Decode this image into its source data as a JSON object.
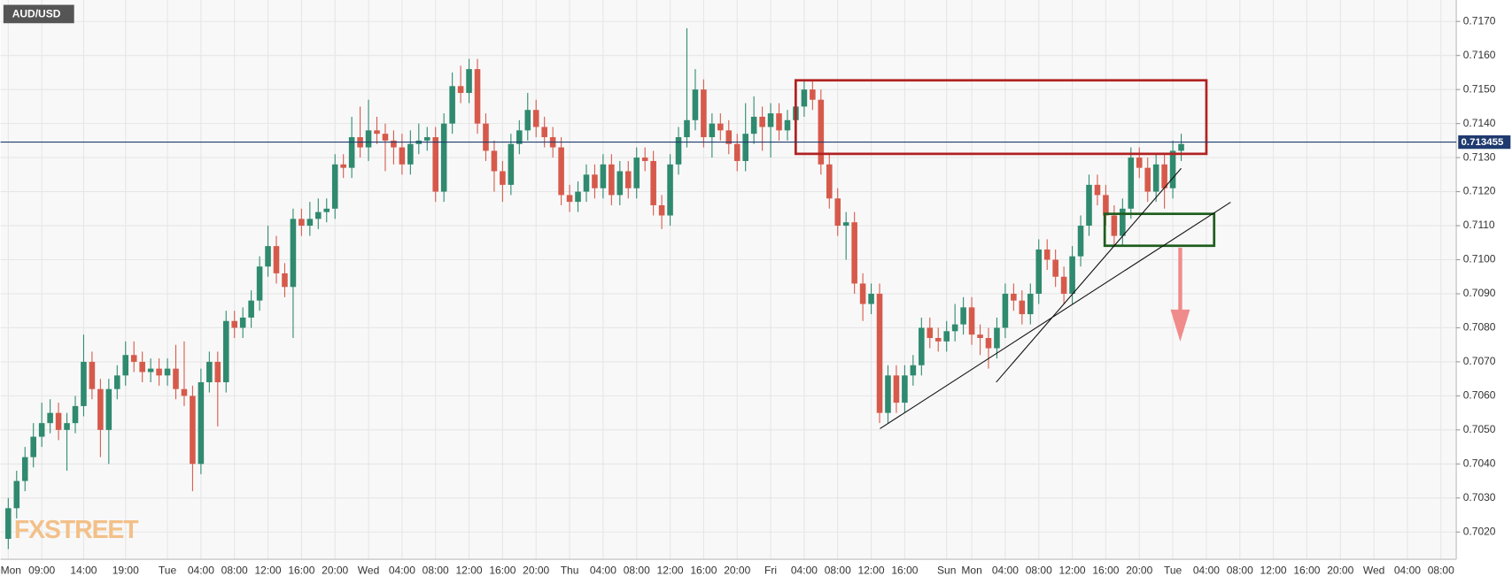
{
  "chart_data": {
    "type": "candlestick",
    "title": "AUD/USD",
    "watermark": "FXSTREET",
    "last_price": 0.713455,
    "up_color": "#2f8a6f",
    "down_color": "#d65a4b",
    "grid": true,
    "ylim": [
      0.7012,
      0.71763
    ],
    "yticks": [
      {
        "value": 0.702,
        "label": "0.7020"
      },
      {
        "value": 0.703,
        "label": "0.7030"
      },
      {
        "value": 0.704,
        "label": "0.7040"
      },
      {
        "value": 0.705,
        "label": "0.7050"
      },
      {
        "value": 0.706,
        "label": "0.7060"
      },
      {
        "value": 0.707,
        "label": "0.7070"
      },
      {
        "value": 0.708,
        "label": "0.7080"
      },
      {
        "value": 0.709,
        "label": "0.7090"
      },
      {
        "value": 0.71,
        "label": "0.7100"
      },
      {
        "value": 0.711,
        "label": "0.7110"
      },
      {
        "value": 0.712,
        "label": "0.7120"
      },
      {
        "value": 0.713,
        "label": "0.7130"
      },
      {
        "value": 0.714,
        "label": "0.7140"
      },
      {
        "value": 0.715,
        "label": "0.7150"
      },
      {
        "value": 0.716,
        "label": "0.7160"
      },
      {
        "value": 0.717,
        "label": "0.7170"
      }
    ],
    "categories": [
      "Mon",
      null,
      null,
      null,
      "09:00",
      null,
      null,
      null,
      null,
      "14:00",
      null,
      null,
      null,
      null,
      "19:00",
      null,
      null,
      null,
      null,
      "Tue",
      null,
      null,
      null,
      "04:00",
      null,
      null,
      null,
      "08:00",
      null,
      null,
      null,
      "12:00",
      null,
      null,
      null,
      "16:00",
      null,
      null,
      null,
      "20:00",
      null,
      null,
      null,
      "Wed",
      null,
      null,
      null,
      "04:00",
      null,
      null,
      null,
      "08:00",
      null,
      null,
      null,
      "12:00",
      null,
      null,
      null,
      "16:00",
      null,
      null,
      null,
      "20:00",
      null,
      null,
      null,
      "Thu",
      null,
      null,
      null,
      "04:00",
      null,
      null,
      null,
      "08:00",
      null,
      null,
      null,
      "12:00",
      null,
      null,
      null,
      "16:00",
      null,
      null,
      null,
      "20:00",
      null,
      null,
      null,
      "Fri",
      null,
      null,
      null,
      "04:00",
      null,
      null,
      null,
      "08:00",
      null,
      null,
      null,
      "12:00",
      null,
      null,
      null,
      "16:00",
      null,
      null,
      null,
      null,
      "Sun",
      null,
      null,
      "Mon",
      null,
      null,
      null,
      "04:00",
      null,
      null,
      null,
      "08:00",
      null,
      null,
      null,
      "12:00",
      null,
      null,
      null,
      "16:00",
      null,
      null,
      null,
      "20:00",
      null,
      null,
      null,
      "Tue",
      null,
      null,
      null,
      "04:00",
      null,
      null,
      null,
      "08:00",
      null,
      null,
      null,
      "12:00",
      null,
      null,
      null,
      "16:00",
      null,
      null,
      null,
      "20:00",
      null,
      null,
      null,
      "Wed",
      null,
      null,
      null,
      "04:00",
      null,
      null,
      null,
      "08:00"
    ],
    "open": [
      0.7018,
      0.7027,
      0.7035,
      0.7042,
      0.7048,
      0.7052,
      0.7055,
      0.705,
      0.7052,
      0.7057,
      0.707,
      0.7062,
      0.705,
      0.7062,
      0.7066,
      0.7072,
      0.707,
      0.7067,
      0.7068,
      0.7066,
      0.7068,
      0.7062,
      0.706,
      0.704,
      0.7064,
      0.707,
      0.7064,
      0.7082,
      0.708,
      0.7083,
      0.7088,
      0.7098,
      0.7104,
      0.7096,
      0.7092,
      0.7112,
      0.711,
      0.7112,
      0.7114,
      0.7115,
      0.7128,
      0.7127,
      0.7136,
      0.7133,
      0.7138,
      0.7137,
      0.7135,
      0.7133,
      0.7128,
      0.7134,
      0.7135,
      0.7136,
      0.712,
      0.714,
      0.7151,
      0.7149,
      0.7156,
      0.714,
      0.7132,
      0.7126,
      0.7122,
      0.7134,
      0.7138,
      0.7144,
      0.7139,
      0.7136,
      0.7133,
      0.7119,
      0.7117,
      0.712,
      0.7125,
      0.7121,
      0.7128,
      0.7119,
      0.7126,
      0.7121,
      0.713,
      0.7129,
      0.7116,
      0.7113,
      0.7128,
      0.7136,
      0.7141,
      0.715,
      0.7136,
      0.714,
      0.7138,
      0.7134,
      0.7129,
      0.7137,
      0.7142,
      0.7139,
      0.7143,
      0.7138,
      0.7141,
      0.7145,
      0.715,
      0.7147,
      0.7128,
      0.7118,
      0.711,
      0.7111,
      0.7093,
      0.7087,
      0.709,
      0.7055,
      0.7066,
      0.7058,
      0.7066,
      0.7069,
      0.708,
      0.7077,
      0.7076,
      0.7079,
      0.7081,
      0.7086,
      0.7078,
      0.7077,
      0.7074,
      0.708,
      0.709,
      0.7088,
      0.7084,
      0.709,
      0.7103,
      0.71,
      0.7095,
      0.709,
      0.7101,
      0.711,
      0.7122,
      0.7119,
      0.7113,
      0.7107,
      0.7115,
      0.713,
      0.7127,
      0.712,
      0.7128,
      0.7121,
      0.7132,
      null,
      null,
      null,
      null,
      null,
      null,
      null,
      null,
      null,
      null,
      null,
      null,
      null,
      null,
      null,
      null,
      null,
      null,
      null,
      null,
      null,
      null,
      null,
      null,
      null,
      null,
      null,
      null,
      null,
      null,
      null
    ],
    "high": [
      0.703,
      0.7038,
      0.7045,
      0.7052,
      0.7058,
      0.7059,
      0.7058,
      0.7055,
      0.706,
      0.7078,
      0.7073,
      0.7065,
      0.7065,
      0.7069,
      0.7076,
      0.7076,
      0.7073,
      0.7071,
      0.7071,
      0.7071,
      0.7075,
      0.7076,
      0.7063,
      0.7068,
      0.7073,
      0.7073,
      0.7085,
      0.7085,
      0.7086,
      0.7091,
      0.7101,
      0.711,
      0.7107,
      0.7099,
      0.7115,
      0.7115,
      0.7117,
      0.7118,
      0.7118,
      0.7131,
      0.7131,
      0.7142,
      0.7145,
      0.7147,
      0.7142,
      0.714,
      0.7138,
      0.7137,
      0.7138,
      0.714,
      0.7139,
      0.7139,
      0.7143,
      0.7155,
      0.7157,
      0.7159,
      0.7159,
      0.7143,
      0.7135,
      0.7129,
      0.7137,
      0.7141,
      0.7149,
      0.7147,
      0.7142,
      0.7139,
      0.7136,
      0.7122,
      0.7123,
      0.7128,
      0.7128,
      0.7131,
      0.7131,
      0.7129,
      0.7129,
      0.7133,
      0.7133,
      0.7132,
      0.7119,
      0.7131,
      0.7139,
      0.7168,
      0.7156,
      0.7153,
      0.7143,
      0.7143,
      0.7141,
      0.7137,
      0.7146,
      0.7148,
      0.7145,
      0.7146,
      0.7146,
      0.7144,
      0.7148,
      0.7153,
      0.7153,
      0.715,
      0.7131,
      0.7121,
      0.7114,
      0.7114,
      0.7096,
      0.7093,
      0.7093,
      0.7069,
      0.7069,
      0.7069,
      0.7072,
      0.7083,
      0.7083,
      0.708,
      0.7082,
      0.7087,
      0.7089,
      0.7089,
      0.7081,
      0.708,
      0.7083,
      0.7093,
      0.7093,
      0.7091,
      0.7093,
      0.7106,
      0.7106,
      0.7103,
      0.7098,
      0.7104,
      0.7113,
      0.7125,
      0.7125,
      0.7122,
      0.7116,
      0.7118,
      0.7133,
      0.7133,
      0.713,
      0.7131,
      0.7131,
      0.7135,
      0.7137,
      null,
      null,
      null,
      null,
      null,
      null,
      null,
      null,
      null,
      null,
      null,
      null,
      null,
      null,
      null,
      null,
      null,
      null,
      null,
      null,
      null,
      null,
      null,
      null,
      null,
      null,
      null,
      null,
      null,
      null,
      null
    ],
    "low": [
      0.7015,
      0.7024,
      0.7032,
      0.7039,
      0.7045,
      0.7049,
      0.7047,
      0.7038,
      0.7049,
      0.7054,
      0.7059,
      0.7042,
      0.704,
      0.7059,
      0.7063,
      0.7067,
      0.7064,
      0.7064,
      0.7063,
      0.7063,
      0.7059,
      0.7057,
      0.7032,
      0.7037,
      0.7061,
      0.7051,
      0.7061,
      0.7077,
      0.7077,
      0.708,
      0.7085,
      0.7095,
      0.7093,
      0.7089,
      0.7077,
      0.7107,
      0.7107,
      0.7109,
      0.7111,
      0.7112,
      0.7124,
      0.7124,
      0.713,
      0.7129,
      0.7134,
      0.7126,
      0.7128,
      0.7125,
      0.7125,
      0.7131,
      0.7132,
      0.7117,
      0.7117,
      0.7137,
      0.7146,
      0.7146,
      0.7137,
      0.7129,
      0.712,
      0.7117,
      0.7119,
      0.7131,
      0.7135,
      0.7136,
      0.7133,
      0.713,
      0.7116,
      0.7114,
      0.7114,
      0.7117,
      0.7118,
      0.7118,
      0.7116,
      0.7116,
      0.7118,
      0.7118,
      0.7126,
      0.7113,
      0.7109,
      0.711,
      0.7125,
      0.7133,
      0.7138,
      0.7133,
      0.713,
      0.7135,
      0.7131,
      0.7126,
      0.7126,
      0.7134,
      0.7132,
      0.713,
      0.7135,
      0.7135,
      0.7138,
      0.7142,
      0.7144,
      0.7125,
      0.7115,
      0.7107,
      0.71,
      0.709,
      0.7082,
      0.7084,
      0.7052,
      0.7052,
      0.7055,
      0.7055,
      0.7063,
      0.7066,
      0.7074,
      0.7073,
      0.7073,
      0.7076,
      0.7078,
      0.7075,
      0.7072,
      0.7068,
      0.7071,
      0.7077,
      0.7085,
      0.7081,
      0.7081,
      0.7087,
      0.7097,
      0.7092,
      0.7087,
      0.7087,
      0.7098,
      0.7107,
      0.7116,
      0.711,
      0.7104,
      0.7104,
      0.7112,
      0.7124,
      0.7117,
      0.7117,
      0.7115,
      0.7118,
      0.7129,
      null,
      null,
      null,
      null,
      null,
      null,
      null,
      null,
      null,
      null,
      null,
      null,
      null,
      null,
      null,
      null,
      null,
      null,
      null,
      null,
      null,
      null,
      null,
      null,
      null,
      null,
      null,
      null,
      null,
      null,
      null
    ],
    "close": [
      0.7027,
      0.7035,
      0.7042,
      0.7048,
      0.7052,
      0.7055,
      0.705,
      0.7052,
      0.7057,
      0.707,
      0.7062,
      0.705,
      0.7062,
      0.7066,
      0.7072,
      0.707,
      0.7067,
      0.7068,
      0.7066,
      0.7068,
      0.7062,
      0.706,
      0.704,
      0.7064,
      0.707,
      0.7064,
      0.7082,
      0.708,
      0.7083,
      0.7088,
      0.7098,
      0.7104,
      0.7096,
      0.7092,
      0.7112,
      0.711,
      0.7112,
      0.7114,
      0.7115,
      0.7128,
      0.7127,
      0.7136,
      0.7133,
      0.7138,
      0.7137,
      0.7135,
      0.7133,
      0.7128,
      0.7134,
      0.7135,
      0.7136,
      0.712,
      0.714,
      0.7151,
      0.7149,
      0.7156,
      0.714,
      0.7132,
      0.7126,
      0.7122,
      0.7134,
      0.7138,
      0.7144,
      0.7139,
      0.7136,
      0.7133,
      0.7119,
      0.7117,
      0.712,
      0.7125,
      0.7121,
      0.7128,
      0.7119,
      0.7126,
      0.7121,
      0.713,
      0.7129,
      0.7116,
      0.7113,
      0.7128,
      0.7136,
      0.7141,
      0.715,
      0.7136,
      0.714,
      0.7138,
      0.7134,
      0.7129,
      0.7137,
      0.7142,
      0.7139,
      0.7143,
      0.7138,
      0.7141,
      0.7145,
      0.715,
      0.7147,
      0.7128,
      0.7118,
      0.711,
      0.7111,
      0.7093,
      0.7087,
      0.709,
      0.7055,
      0.7066,
      0.7058,
      0.7066,
      0.7069,
      0.708,
      0.7077,
      0.7076,
      0.7079,
      0.7081,
      0.7086,
      0.7078,
      0.7077,
      0.7074,
      0.708,
      0.709,
      0.7088,
      0.7084,
      0.709,
      0.7103,
      0.71,
      0.7095,
      0.709,
      0.7101,
      0.711,
      0.7122,
      0.7119,
      0.7113,
      0.7107,
      0.7115,
      0.713,
      0.7127,
      0.712,
      0.7128,
      0.7121,
      0.7132,
      0.7134,
      null,
      null,
      null,
      null,
      null,
      null,
      null,
      null,
      null,
      null,
      null,
      null,
      null,
      null,
      null,
      null,
      null,
      null,
      null,
      null,
      null,
      null,
      null,
      null,
      null,
      null,
      null,
      null,
      null,
      null,
      null
    ]
  }
}
